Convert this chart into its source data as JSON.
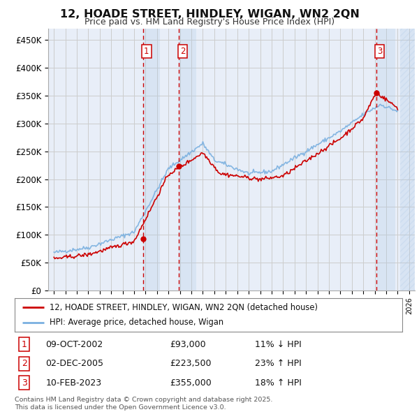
{
  "title": "12, HOADE STREET, HINDLEY, WIGAN, WN2 2QN",
  "subtitle": "Price paid vs. HM Land Registry's House Price Index (HPI)",
  "ylabel_ticks": [
    "£0",
    "£50K",
    "£100K",
    "£150K",
    "£200K",
    "£250K",
    "£300K",
    "£350K",
    "£400K",
    "£450K"
  ],
  "ytick_values": [
    0,
    50000,
    100000,
    150000,
    200000,
    250000,
    300000,
    350000,
    400000,
    450000
  ],
  "ylim": [
    0,
    470000
  ],
  "xlim_start": 1994.5,
  "xlim_end": 2026.5,
  "bg_color": "#ffffff",
  "grid_color": "#cccccc",
  "plot_bg_color": "#e8eef8",
  "hpi_color": "#7ab0e0",
  "price_color": "#cc0000",
  "sale_marker_color": "#cc0000",
  "transaction_box_color": "#cc0000",
  "transactions": [
    {
      "id": 1,
      "date": 2002.78,
      "price": 93000,
      "pct": "11%",
      "dir": "↓",
      "label": "09-OCT-2002",
      "price_str": "£93,000"
    },
    {
      "id": 2,
      "date": 2005.92,
      "price": 223500,
      "pct": "23%",
      "dir": "↑",
      "label": "02-DEC-2005",
      "price_str": "£223,500"
    },
    {
      "id": 3,
      "date": 2023.12,
      "price": 355000,
      "pct": "18%",
      "dir": "↑",
      "label": "10-FEB-2023",
      "price_str": "£355,000"
    }
  ],
  "legend_line1": "12, HOADE STREET, HINDLEY, WIGAN, WN2 2QN (detached house)",
  "legend_line2": "HPI: Average price, detached house, Wigan",
  "footer_line1": "Contains HM Land Registry data © Crown copyright and database right 2025.",
  "footer_line2": "This data is licensed under the Open Government Licence v3.0.",
  "footer_color": "#555555"
}
